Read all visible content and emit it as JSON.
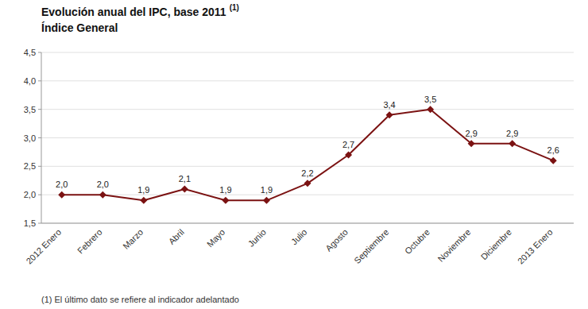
{
  "chart_data": {
    "type": "line",
    "title": "Evolución anual del IPC, base 2011",
    "title_superscript": "(1)",
    "subtitle": "Índice General",
    "footnote": "(1) El último dato se refiere al indicador adelantado",
    "categories": [
      "2012 Enero",
      "Febrero",
      "Marzo",
      "Abril",
      "Mayo",
      "Junio",
      "Julio",
      "Agosto",
      "Septiembre",
      "Octubre",
      "Noviembre",
      "Diciembre",
      "2013 Enero"
    ],
    "values": [
      2.0,
      2.0,
      1.9,
      2.1,
      1.9,
      1.9,
      2.2,
      2.7,
      3.4,
      3.5,
      2.9,
      2.9,
      2.6
    ],
    "value_labels": [
      "2,0",
      "2,0",
      "1,9",
      "2,1",
      "1,9",
      "1,9",
      "2,2",
      "2,7",
      "3,4",
      "3,5",
      "2,9",
      "2,9",
      "2,6"
    ],
    "data_labels": true,
    "ylim": [
      1.5,
      4.5
    ],
    "yticks": [
      {
        "value": 1.5,
        "label": "1,5"
      },
      {
        "value": 2.0,
        "label": "2,0"
      },
      {
        "value": 2.5,
        "label": "2,5"
      },
      {
        "value": 3.0,
        "label": "3,0"
      },
      {
        "value": 3.5,
        "label": "3,5"
      },
      {
        "value": 4.0,
        "label": "4,0"
      },
      {
        "value": 4.5,
        "label": "4,5"
      }
    ],
    "grid": true,
    "color": "#7b1212",
    "marker": "diamond"
  }
}
